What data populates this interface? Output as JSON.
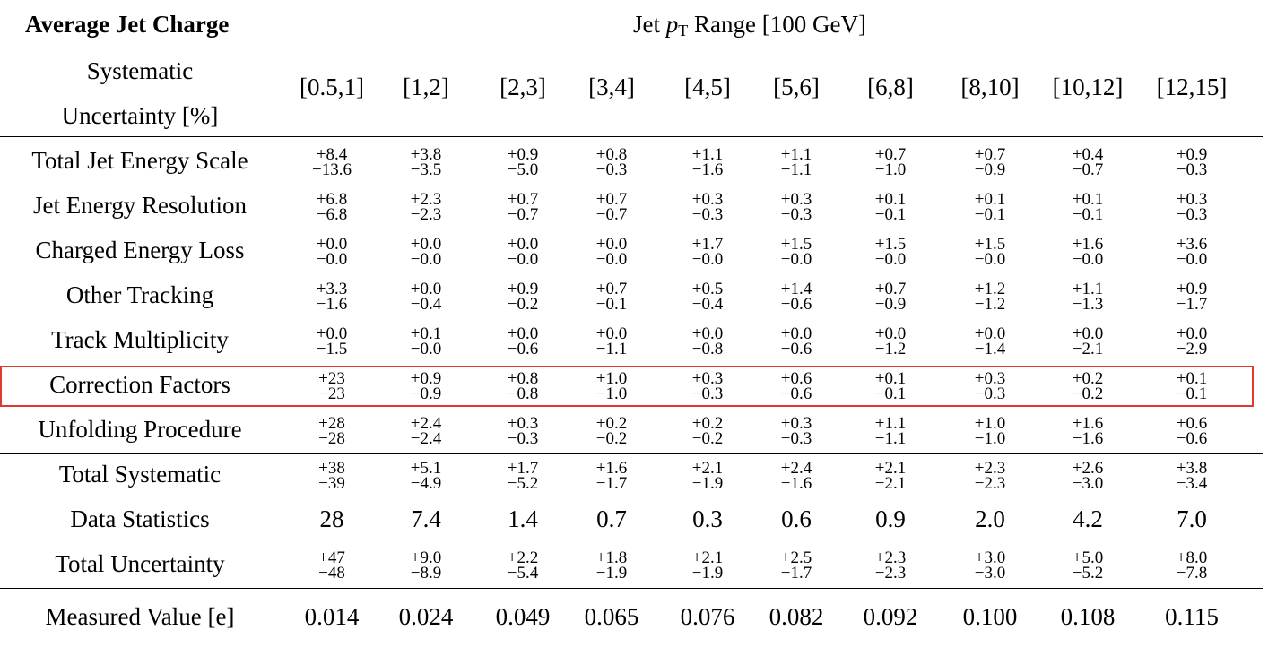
{
  "header": {
    "title": "Average Jet Charge",
    "range_prefix": "Jet ",
    "range_var": "p",
    "range_sub": "T",
    "range_suffix": " Range [100 GeV]",
    "sys_line1": "Systematic",
    "sys_line2": "Uncertainty [%]"
  },
  "ranges": [
    "[0.5,1]",
    "[1,2]",
    "[2,3]",
    "[3,4]",
    "[4,5]",
    "[5,6]",
    "[6,8]",
    "[8,10]",
    "[10,12]",
    "[12,15]"
  ],
  "rows": [
    {
      "label": "Total Jet Energy Scale",
      "plus": [
        "+8.4",
        "+3.8",
        "+0.9",
        "+0.8",
        "+1.1",
        "+1.1",
        "+0.7",
        "+0.7",
        "+0.4",
        "+0.9"
      ],
      "minus": [
        "−13.6",
        "−3.5",
        "−5.0",
        "−0.3",
        "−1.6",
        "−1.1",
        "−1.0",
        "−0.9",
        "−0.7",
        "−0.3"
      ]
    },
    {
      "label": "Jet Energy Resolution",
      "plus": [
        "+6.8",
        "+2.3",
        "+0.7",
        "+0.7",
        "+0.3",
        "+0.3",
        "+0.1",
        "+0.1",
        "+0.1",
        "+0.3"
      ],
      "minus": [
        "−6.8",
        "−2.3",
        "−0.7",
        "−0.7",
        "−0.3",
        "−0.3",
        "−0.1",
        "−0.1",
        "−0.1",
        "−0.3"
      ]
    },
    {
      "label": "Charged Energy Loss",
      "plus": [
        "+0.0",
        "+0.0",
        "+0.0",
        "+0.0",
        "+1.7",
        "+1.5",
        "+1.5",
        "+1.5",
        "+1.6",
        "+3.6"
      ],
      "minus": [
        "−0.0",
        "−0.0",
        "−0.0",
        "−0.0",
        "−0.0",
        "−0.0",
        "−0.0",
        "−0.0",
        "−0.0",
        "−0.0"
      ]
    },
    {
      "label": "Other Tracking",
      "plus": [
        "+3.3",
        "+0.0",
        "+0.9",
        "+0.7",
        "+0.5",
        "+1.4",
        "+0.7",
        "+1.2",
        "+1.1",
        "+0.9"
      ],
      "minus": [
        "−1.6",
        "−0.4",
        "−0.2",
        "−0.1",
        "−0.4",
        "−0.6",
        "−0.9",
        "−1.2",
        "−1.3",
        "−1.7"
      ]
    },
    {
      "label": "Track Multiplicity",
      "plus": [
        "+0.0",
        "+0.1",
        "+0.0",
        "+0.0",
        "+0.0",
        "+0.0",
        "+0.0",
        "+0.0",
        "+0.0",
        "+0.0"
      ],
      "minus": [
        "−1.5",
        "−0.0",
        "−0.6",
        "−1.1",
        "−0.8",
        "−0.6",
        "−1.2",
        "−1.4",
        "−2.1",
        "−2.9"
      ]
    },
    {
      "label": "Correction Factors",
      "plus": [
        "+23",
        "+0.9",
        "+0.8",
        "+1.0",
        "+0.3",
        "+0.6",
        "+0.1",
        "+0.3",
        "+0.2",
        "+0.1"
      ],
      "minus": [
        "−23",
        "−0.9",
        "−0.8",
        "−1.0",
        "−0.3",
        "−0.6",
        "−0.1",
        "−0.3",
        "−0.2",
        "−0.1"
      ]
    },
    {
      "label": "Unfolding Procedure",
      "plus": [
        "+28",
        "+2.4",
        "+0.3",
        "+0.2",
        "+0.2",
        "+0.3",
        "+1.1",
        "+1.0",
        "+1.6",
        "+0.6"
      ],
      "minus": [
        "−28",
        "−2.4",
        "−0.3",
        "−0.2",
        "−0.2",
        "−0.3",
        "−1.1",
        "−1.0",
        "−1.6",
        "−0.6"
      ]
    },
    {
      "label": "Total Systematic",
      "plus": [
        "+38",
        "+5.1",
        "+1.7",
        "+1.6",
        "+2.1",
        "+2.4",
        "+2.1",
        "+2.3",
        "+2.6",
        "+3.8"
      ],
      "minus": [
        "−39",
        "−4.9",
        "−5.2",
        "−1.7",
        "−1.9",
        "−1.6",
        "−2.1",
        "−2.3",
        "−3.0",
        "−3.4"
      ]
    },
    {
      "label": "Data Statistics",
      "values": [
        "28",
        "7.4",
        "1.4",
        "0.7",
        "0.3",
        "0.6",
        "0.9",
        "2.0",
        "4.2",
        "7.0"
      ]
    },
    {
      "label": "Total Uncertainty",
      "plus": [
        "+47",
        "+9.0",
        "+2.2",
        "+1.8",
        "+2.1",
        "+2.5",
        "+2.3",
        "+3.0",
        "+5.0",
        "+8.0"
      ],
      "minus": [
        "−48",
        "−8.9",
        "−5.4",
        "−1.9",
        "−1.9",
        "−1.7",
        "−2.3",
        "−3.0",
        "−5.2",
        "−7.8"
      ]
    }
  ],
  "measured": {
    "label": "Measured Value [e]",
    "values": [
      "0.014",
      "0.024",
      "0.049",
      "0.065",
      "0.076",
      "0.082",
      "0.092",
      "0.100",
      "0.108",
      "0.115"
    ]
  },
  "highlight": {
    "row": "Correction Factors",
    "color": "#e0392f"
  }
}
